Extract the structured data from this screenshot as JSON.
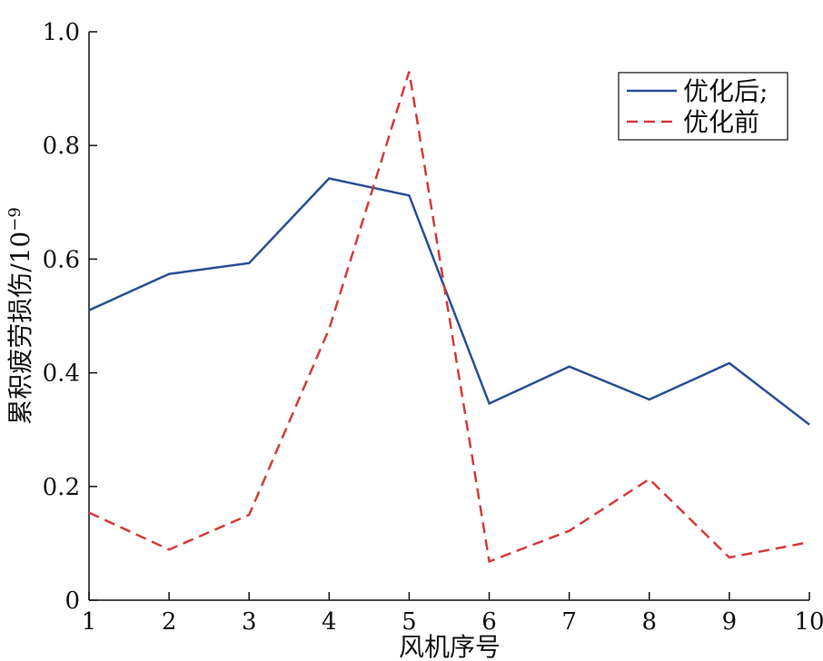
{
  "chart_data": {
    "type": "line",
    "title": "",
    "xlabel": "风机序号",
    "ylabel": "累积疲劳损伤/10",
    "ylabel_sup": "−9",
    "x": [
      1,
      2,
      3,
      4,
      5,
      6,
      7,
      8,
      9,
      10
    ],
    "xlim": [
      1,
      10
    ],
    "ylim": [
      0,
      1.0
    ],
    "xticks": [
      "1",
      "2",
      "3",
      "4",
      "5",
      "6",
      "7",
      "8",
      "9",
      "10"
    ],
    "yticks": [
      {
        "value": 0,
        "label": "0"
      },
      {
        "value": 0.2,
        "label": "0.2"
      },
      {
        "value": 0.4,
        "label": "0.4"
      },
      {
        "value": 0.6,
        "label": "0.6"
      },
      {
        "value": 0.8,
        "label": "0.8"
      },
      {
        "value": 1.0,
        "label": "1.0"
      }
    ],
    "grid": false,
    "legend_position": "top-right",
    "series": [
      {
        "name": "优化后;",
        "color": "#2a4f96",
        "dash": "solid",
        "values": [
          0.51,
          0.574,
          0.593,
          0.742,
          0.712,
          0.346,
          0.411,
          0.353,
          0.417,
          0.309
        ]
      },
      {
        "name": "优化前",
        "color": "#d63a3a",
        "dash": "dashed",
        "values": [
          0.154,
          0.089,
          0.15,
          0.477,
          0.93,
          0.068,
          0.122,
          0.213,
          0.075,
          0.102
        ]
      }
    ]
  }
}
